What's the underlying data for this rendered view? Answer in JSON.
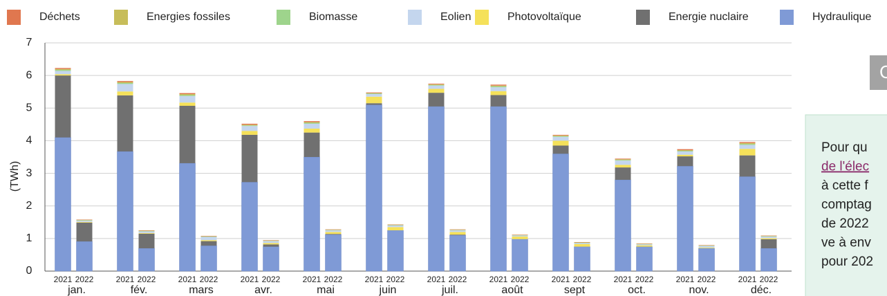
{
  "chart_data": {
    "type": "stacked_bar",
    "ylabel": "(TWh)",
    "ylim": [
      0,
      7
    ],
    "yticks": [
      0,
      1,
      2,
      3,
      4,
      5,
      6,
      7
    ],
    "grid": true,
    "groups": [
      "jan.",
      "fév.",
      "mars",
      "avr.",
      "mai",
      "juin",
      "juil.",
      "août",
      "sept",
      "oct.",
      "nov.",
      "déc."
    ],
    "categories": [
      "2021",
      "2022",
      "2021",
      "2022",
      "2021",
      "2022",
      "2021",
      "2022",
      "2021",
      "2022",
      "2021",
      "2022",
      "2021",
      "2022",
      "2021",
      "2022",
      "2021",
      "2022",
      "2021",
      "2022",
      "2021",
      "2022",
      "2021",
      "2022"
    ],
    "series": [
      {
        "name": "Hydraulique",
        "color": "#7f9ad6",
        "values": [
          4.1,
          0.91,
          3.67,
          0.7,
          3.31,
          0.78,
          2.73,
          0.75,
          3.5,
          1.12,
          5.1,
          1.25,
          5.05,
          1.1,
          5.05,
          0.98,
          3.6,
          0.75,
          2.8,
          0.75,
          3.22,
          0.7,
          2.9,
          0.7
        ]
      },
      {
        "name": "Energie nuclaire",
        "color": "#707070",
        "values": [
          1.9,
          0.58,
          1.72,
          0.45,
          1.76,
          0.14,
          1.45,
          0.07,
          0.75,
          0.02,
          0.05,
          0,
          0.42,
          0.02,
          0.35,
          0,
          0.25,
          0,
          0.38,
          0,
          0.3,
          0,
          0.65,
          0.28
        ]
      },
      {
        "name": "Photovoltaïque",
        "color": "#f5e15a",
        "values": [
          0.04,
          0.02,
          0.12,
          0.02,
          0.1,
          0.03,
          0.12,
          0.04,
          0.12,
          0.06,
          0.2,
          0.1,
          0.12,
          0.08,
          0.12,
          0.08,
          0.15,
          0.08,
          0.08,
          0.04,
          0.05,
          0.02,
          0.2,
          0.03
        ]
      },
      {
        "name": "Eolien",
        "color": "#c4d6ee",
        "values": [
          0.1,
          0.04,
          0.23,
          0.05,
          0.2,
          0.1,
          0.15,
          0.06,
          0.15,
          0.05,
          0.08,
          0.05,
          0.1,
          0.05,
          0.12,
          0.03,
          0.12,
          0.03,
          0.13,
          0.03,
          0.1,
          0.05,
          0.12,
          0.05
        ]
      },
      {
        "name": "Biomasse",
        "color": "#9ed48c",
        "values": [
          0.03,
          0.01,
          0.03,
          0.01,
          0.03,
          0.01,
          0.02,
          0.01,
          0.03,
          0.01,
          0.02,
          0.01,
          0.02,
          0.01,
          0.03,
          0.01,
          0.02,
          0.01,
          0.02,
          0.01,
          0.02,
          0.01,
          0.03,
          0.01
        ]
      },
      {
        "name": "Energies fossiles",
        "color": "#c7bd5a",
        "values": [
          0.03,
          0.01,
          0.03,
          0.01,
          0.03,
          0.01,
          0.02,
          0.01,
          0.02,
          0.01,
          0.01,
          0.01,
          0.02,
          0.01,
          0.02,
          0.01,
          0.02,
          0.01,
          0.02,
          0.01,
          0.02,
          0.01,
          0.03,
          0.01
        ]
      },
      {
        "name": "Déchets",
        "color": "#e0774f",
        "values": [
          0.03,
          0.01,
          0.03,
          0.01,
          0.03,
          0.01,
          0.03,
          0.01,
          0.03,
          0.01,
          0.02,
          0.01,
          0.02,
          0.01,
          0.03,
          0.01,
          0.02,
          0.01,
          0.02,
          0.01,
          0.03,
          0.01,
          0.03,
          0.01
        ]
      }
    ]
  },
  "side": {
    "button": "C",
    "panel_lines": [
      "Pour qu",
      "de l'élec",
      "à cette f",
      "comptag",
      "de 2022",
      "ve à env",
      "pour 202"
    ]
  }
}
